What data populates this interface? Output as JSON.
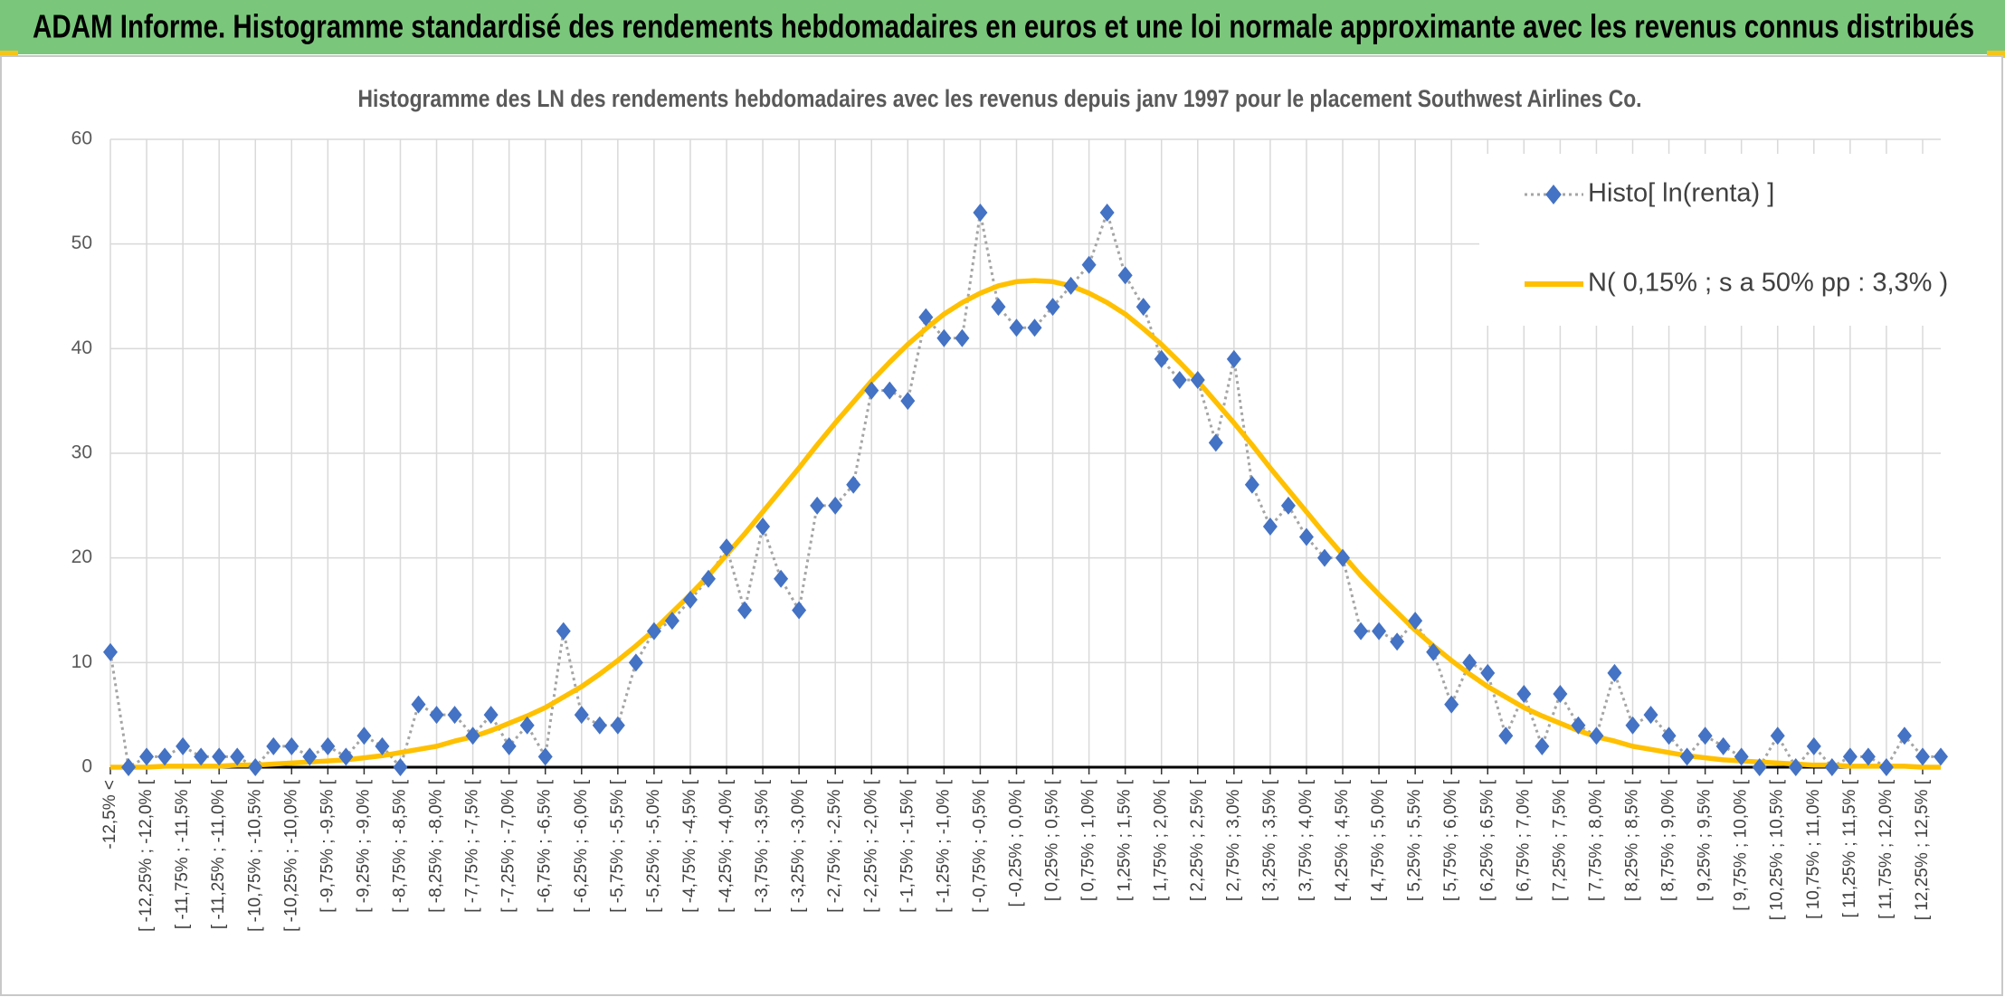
{
  "chart_data": {
    "type": "line",
    "banner": "ADAM Informe. Histogramme standardisé des rendements hebdomadaires en euros et une loi normale approximante avec les revenus connus distribués",
    "title": "Histogramme des LN des rendements hebdomadaires avec les revenus depuis janv 1997 pour le placement Southwest Airlines Co.",
    "categories": [
      "-12,5% <",
      null,
      "[ -12,25% ; -12,0% [",
      null,
      "[ -11,75% ; -11,5% [",
      null,
      "[ -11,25% ; -11,0% [",
      null,
      "[ -10,75% ; -10,5% [",
      null,
      "[ -10,25% ; -10,0% [",
      null,
      "[ -9,75% ; -9,5% [",
      null,
      "[ -9,25% ; -9,0% [",
      null,
      "[ -8,75% ; -8,5% [",
      null,
      "[ -8,25% ; -8,0% [",
      null,
      "[ -7,75% ; -7,5% [",
      null,
      "[ -7,25% ; -7,0% [",
      null,
      "[ -6,75% ; -6,5% [",
      null,
      "[ -6,25% ; -6,0% [",
      null,
      "[ -5,75% ; -5,5% [",
      null,
      "[ -5,25% ; -5,0% [",
      null,
      "[ -4,75% ; -4,5% [",
      null,
      "[ -4,25% ; -4,0% [",
      null,
      "[ -3,75% ; -3,5% [",
      null,
      "[ -3,25% ; -3,0% [",
      null,
      "[ -2,75% ; -2,5% [",
      null,
      "[ -2,25% ; -2,0% [",
      null,
      "[ -1,75% ; -1,5% [",
      null,
      "[ -1,25% ; -1,0% [",
      null,
      "[ -0,75% ; -0,5% [",
      null,
      "[ -0,25% ; 0,0% [",
      null,
      "[ 0,25% ; 0,5% [",
      null,
      "[ 0,75% ; 1,0% [",
      null,
      "[ 1,25% ; 1,5% [",
      null,
      "[ 1,75% ; 2,0% [",
      null,
      "[ 2,25% ; 2,5% [",
      null,
      "[ 2,75% ; 3,0% [",
      null,
      "[ 3,25% ; 3,5% [",
      null,
      "[ 3,75% ; 4,0% [",
      null,
      "[ 4,25% ; 4,5% [",
      null,
      "[ 4,75% ; 5,0% [",
      null,
      "[ 5,25% ; 5,5% [",
      null,
      "[ 5,75% ; 6,0% [",
      null,
      "[ 6,25% ; 6,5% [",
      null,
      "[ 6,75% ; 7,0% [",
      null,
      "[ 7,25% ; 7,5% [",
      null,
      "[ 7,75% ; 8,0% [",
      null,
      "[ 8,25% ; 8,5% [",
      null,
      "[ 8,75% ; 9,0% [",
      null,
      "[ 9,25% ; 9,5% [",
      null,
      "[ 9,75% ; 10,0% [",
      null,
      "[ 10,25% ; 10,5% [",
      null,
      "[ 10,75% ; 11,0% [",
      null,
      "[ 11,25% ; 11,5% [",
      null,
      "[ 11,75% ; 12,0% [",
      null,
      "[ 12,25% ; 12,5% [",
      null
    ],
    "series": [
      {
        "name": "Histo[ ln(renta) ]",
        "color": "#4472c4",
        "line_color": "#a5a5a5",
        "line_style": "dotted",
        "marker": "diamond",
        "values": [
          11,
          0,
          1,
          1,
          2,
          1,
          1,
          1,
          0,
          2,
          2,
          1,
          2,
          1,
          3,
          2,
          0,
          6,
          5,
          5,
          3,
          5,
          2,
          4,
          1,
          13,
          5,
          4,
          4,
          10,
          13,
          14,
          16,
          18,
          21,
          15,
          23,
          18,
          15,
          25,
          25,
          27,
          36,
          36,
          35,
          43,
          41,
          41,
          53,
          44,
          42,
          42,
          44,
          46,
          48,
          53,
          47,
          44,
          39,
          37,
          37,
          31,
          39,
          27,
          23,
          25,
          22,
          20,
          20,
          13,
          13,
          12,
          14,
          11,
          6,
          10,
          9,
          3,
          7,
          2,
          7,
          4,
          3,
          9,
          4,
          5,
          3,
          1,
          3,
          2,
          1,
          0,
          3,
          0,
          2,
          0,
          1,
          1,
          0,
          3,
          1,
          1
        ]
      },
      {
        "name": "N( 0,15% ; s a 50% pp : 3,3% )",
        "color": "#ffc000",
        "line_style": "solid",
        "values": [
          0,
          0,
          0,
          0.1,
          0.1,
          0.1,
          0.1,
          0.2,
          0.2,
          0.3,
          0.4,
          0.5,
          0.6,
          0.7,
          0.9,
          1.1,
          1.4,
          1.7,
          2.0,
          2.5,
          2.9,
          3.5,
          4.2,
          4.9,
          5.7,
          6.7,
          7.7,
          8.9,
          10.2,
          11.6,
          13.1,
          14.8,
          16.5,
          18.3,
          20.3,
          22.3,
          24.4,
          26.5,
          28.6,
          30.8,
          32.9,
          34.9,
          36.9,
          38.7,
          40.4,
          41.9,
          43.3,
          44.4,
          45.3,
          46.0,
          46.4,
          46.5,
          46.4,
          46.0,
          45.3,
          44.4,
          43.3,
          41.9,
          40.4,
          38.7,
          36.9,
          34.9,
          32.9,
          30.8,
          28.6,
          26.5,
          24.4,
          22.3,
          20.3,
          18.3,
          16.5,
          14.8,
          13.1,
          11.6,
          10.2,
          8.9,
          7.7,
          6.7,
          5.7,
          4.9,
          4.2,
          3.5,
          2.9,
          2.5,
          2.0,
          1.7,
          1.4,
          1.1,
          0.9,
          0.7,
          0.6,
          0.5,
          0.4,
          0.3,
          0.2,
          0.2,
          0.1,
          0.1,
          0.1,
          0.1,
          0,
          0
        ]
      }
    ],
    "ylim": [
      0,
      60
    ],
    "yticks": [
      0,
      10,
      20,
      30,
      40,
      50,
      60
    ],
    "grid": true,
    "legend": "top-right"
  }
}
